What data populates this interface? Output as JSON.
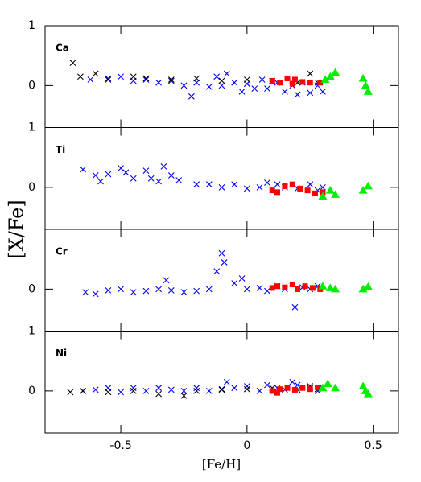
{
  "figure": {
    "ylabel": "[X/Fe]",
    "xlabel": "[Fe/H]"
  },
  "chart_data": [
    {
      "type": "scatter",
      "label": "Ca",
      "xlim": [
        -0.8,
        0.6
      ],
      "ylim": [
        -0.7,
        1
      ],
      "xticks": [
        -0.5,
        0,
        0.5
      ],
      "yticks": [
        0,
        1
      ],
      "series": [
        {
          "color": "#0000ff",
          "marker": "cross",
          "x": [
            -0.62,
            -0.55,
            -0.5,
            -0.45,
            -0.4,
            -0.35,
            -0.3,
            -0.25,
            -0.2,
            -0.15,
            -0.12,
            -0.1,
            -0.05,
            -0.02,
            0.0,
            0.03,
            0.06,
            0.08,
            0.12,
            0.15,
            0.18,
            0.2,
            0.22,
            0.25,
            0.28,
            0.3,
            -0.22,
            -0.08
          ],
          "values": [
            0.1,
            0.12,
            0.15,
            0.08,
            0.1,
            0.05,
            0.08,
            0.0,
            0.05,
            -0.02,
            0.15,
            0.0,
            0.05,
            -0.1,
            0.03,
            -0.05,
            0.1,
            -0.05,
            0.05,
            -0.1,
            0.0,
            -0.15,
            0.05,
            -0.12,
            0.0,
            -0.1,
            -0.18,
            0.2
          ]
        },
        {
          "color": "#000000",
          "marker": "cross",
          "x": [
            -0.69,
            -0.66,
            -0.6,
            -0.55,
            -0.45,
            -0.4,
            -0.3,
            -0.2,
            -0.1,
            0.0,
            0.1,
            0.2,
            0.25,
            0.28
          ],
          "values": [
            0.38,
            0.15,
            0.2,
            0.1,
            0.15,
            0.12,
            0.1,
            0.12,
            0.08,
            0.1,
            0.08,
            0.05,
            0.2,
            0.05
          ]
        },
        {
          "color": "#ff0000",
          "marker": "square",
          "x": [
            0.1,
            0.13,
            0.16,
            0.19,
            0.22,
            0.25,
            0.29,
            0.18
          ],
          "values": [
            0.08,
            0.05,
            0.12,
            0.1,
            0.06,
            0.05,
            0.05,
            0.03
          ]
        },
        {
          "color": "#00ee00",
          "marker": "triangle",
          "x": [
            0.31,
            0.33,
            0.35,
            0.46,
            0.47,
            0.48
          ],
          "values": [
            0.1,
            0.15,
            0.22,
            0.12,
            0.0,
            -0.1
          ]
        }
      ]
    },
    {
      "type": "scatter",
      "label": "Ti",
      "xlim": [
        -0.8,
        0.6
      ],
      "ylim": [
        -0.7,
        1
      ],
      "xticks": [
        -0.5,
        0,
        0.5
      ],
      "yticks": [
        0,
        1
      ],
      "series": [
        {
          "color": "#0000ff",
          "marker": "cross",
          "x": [
            -0.65,
            -0.6,
            -0.58,
            -0.55,
            -0.5,
            -0.48,
            -0.45,
            -0.4,
            -0.38,
            -0.35,
            -0.33,
            -0.3,
            -0.27,
            -0.2,
            -0.15,
            -0.1,
            -0.05,
            0.0,
            0.05,
            0.08,
            0.12,
            0.15,
            0.2,
            0.25,
            0.28,
            0.3
          ],
          "values": [
            0.3,
            0.2,
            0.1,
            0.22,
            0.32,
            0.25,
            0.15,
            0.28,
            0.15,
            0.1,
            0.35,
            0.2,
            0.12,
            0.05,
            0.05,
            0.0,
            0.05,
            -0.02,
            0.0,
            0.08,
            0.05,
            0.0,
            -0.02,
            0.05,
            -0.05,
            0.0
          ]
        },
        {
          "color": "#ff0000",
          "marker": "square",
          "x": [
            0.1,
            0.12,
            0.15,
            0.18,
            0.21,
            0.24,
            0.27,
            0.3
          ],
          "values": [
            -0.05,
            -0.08,
            0.02,
            0.05,
            -0.02,
            -0.05,
            -0.1,
            -0.08
          ]
        },
        {
          "color": "#00ee00",
          "marker": "triangle",
          "x": [
            0.3,
            0.33,
            0.35,
            0.46,
            0.48
          ],
          "values": [
            -0.15,
            -0.05,
            -0.12,
            -0.05,
            0.02
          ]
        }
      ]
    },
    {
      "type": "scatter",
      "label": "Cr",
      "xlim": [
        -0.8,
        0.6
      ],
      "ylim": [
        -0.7,
        1
      ],
      "xticks": [
        -0.5,
        0,
        0.5
      ],
      "yticks": [
        0
      ],
      "series": [
        {
          "color": "#0000ff",
          "marker": "cross",
          "x": [
            -0.64,
            -0.6,
            -0.55,
            -0.5,
            -0.45,
            -0.4,
            -0.35,
            -0.32,
            -0.3,
            -0.25,
            -0.2,
            -0.15,
            -0.12,
            -0.1,
            -0.09,
            -0.05,
            0.0,
            0.05,
            0.08,
            0.12,
            0.15,
            0.19,
            0.22,
            0.25,
            0.28,
            -0.02
          ],
          "values": [
            -0.05,
            -0.08,
            -0.02,
            0.0,
            -0.05,
            -0.03,
            0.0,
            0.15,
            -0.02,
            -0.05,
            -0.03,
            0.0,
            0.3,
            0.6,
            0.45,
            0.1,
            0.0,
            0.02,
            -0.03,
            0.05,
            0.0,
            -0.3,
            0.03,
            0.0,
            0.05,
            0.18
          ]
        },
        {
          "color": "#ff0000",
          "marker": "square",
          "x": [
            0.1,
            0.12,
            0.15,
            0.18,
            0.2,
            0.23,
            0.26,
            0.29
          ],
          "values": [
            0.02,
            0.05,
            0.03,
            0.08,
            0.0,
            0.05,
            0.02,
            0.0
          ]
        },
        {
          "color": "#00ee00",
          "marker": "triangle",
          "x": [
            0.3,
            0.33,
            0.35,
            0.46,
            0.48
          ],
          "values": [
            0.05,
            0.02,
            0.0,
            0.0,
            0.04
          ]
        }
      ]
    },
    {
      "type": "scatter",
      "label": "Ni",
      "xlim": [
        -0.8,
        0.6
      ],
      "ylim": [
        -0.7,
        1
      ],
      "xticks": [
        -0.5,
        0,
        0.5
      ],
      "yticks": [
        0,
        1
      ],
      "series": [
        {
          "color": "#0000ff",
          "marker": "cross",
          "x": [
            -0.65,
            -0.6,
            -0.55,
            -0.5,
            -0.45,
            -0.4,
            -0.35,
            -0.3,
            -0.25,
            -0.2,
            -0.15,
            -0.1,
            -0.05,
            0.0,
            0.05,
            0.08,
            0.12,
            0.15,
            0.2,
            0.25,
            0.28,
            0.3,
            -0.08,
            0.18
          ],
          "values": [
            0.0,
            0.02,
            0.05,
            -0.02,
            0.05,
            0.0,
            0.05,
            0.02,
            0.0,
            0.05,
            0.0,
            0.03,
            0.05,
            0.08,
            0.0,
            0.1,
            0.05,
            0.02,
            0.1,
            0.05,
            0.0,
            0.05,
            0.15,
            0.15
          ]
        },
        {
          "color": "#000000",
          "marker": "cross",
          "x": [
            -0.7,
            -0.65,
            -0.55,
            -0.45,
            -0.35,
            -0.25,
            -0.2,
            -0.1,
            0.0,
            0.1,
            0.2,
            0.25,
            0.28
          ],
          "values": [
            -0.02,
            0.0,
            -0.02,
            0.0,
            -0.05,
            -0.08,
            0.0,
            0.02,
            0.03,
            0.05,
            0.02,
            0.08,
            0.03
          ]
        },
        {
          "color": "#ff0000",
          "marker": "square",
          "x": [
            0.1,
            0.13,
            0.16,
            0.19,
            0.22,
            0.25,
            0.28,
            0.12
          ],
          "values": [
            0.0,
            0.03,
            0.05,
            0.02,
            0.05,
            0.03,
            0.06,
            -0.03
          ]
        },
        {
          "color": "#00ee00",
          "marker": "triangle",
          "x": [
            0.3,
            0.32,
            0.35,
            0.46,
            0.47,
            0.48
          ],
          "values": [
            0.05,
            0.12,
            0.05,
            0.08,
            0.0,
            -0.05
          ]
        }
      ]
    }
  ]
}
